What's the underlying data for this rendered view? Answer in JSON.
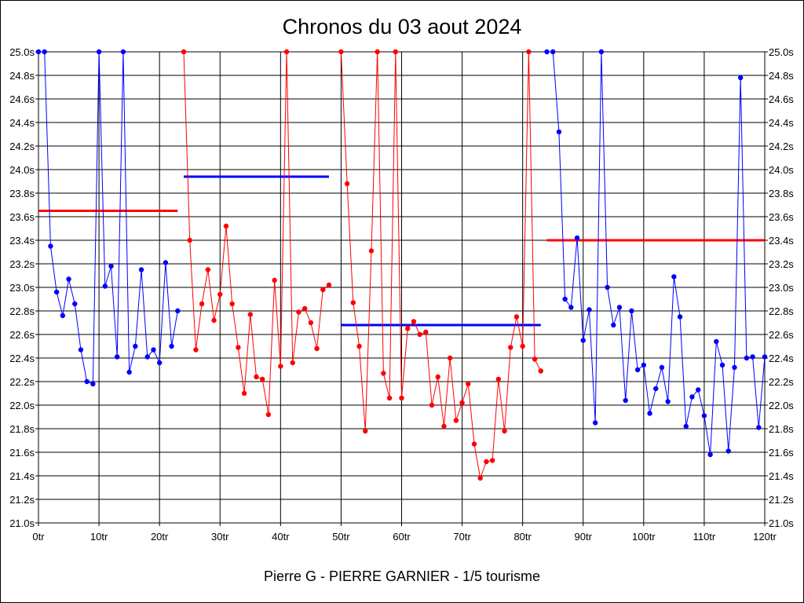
{
  "chart_data": {
    "type": "line",
    "title": "Chronos du 03 aout 2024",
    "subtitle": "Pierre G - PIERRE GARNIER - 1/5 tourisme",
    "xlabel": "",
    "ylabel": "",
    "xlim": [
      0,
      120
    ],
    "ylim": [
      21.0,
      25.0
    ],
    "x_ticks": [
      "0tr",
      "10tr",
      "20tr",
      "30tr",
      "40tr",
      "50tr",
      "60tr",
      "70tr",
      "80tr",
      "90tr",
      "100tr",
      "110tr",
      "120tr"
    ],
    "y_ticks": [
      "21.0s",
      "21.2s",
      "21.4s",
      "21.6s",
      "21.8s",
      "22.0s",
      "22.2s",
      "22.4s",
      "22.6s",
      "22.8s",
      "23.0s",
      "23.2s",
      "23.4s",
      "23.6s",
      "23.8s",
      "24.0s",
      "24.2s",
      "24.4s",
      "24.6s",
      "24.8s",
      "25.0s"
    ],
    "grid": true,
    "series": [
      {
        "color": "#0000ff",
        "x": [
          0,
          1,
          2,
          3,
          4,
          5,
          6,
          7,
          8,
          9,
          10,
          11,
          12,
          13,
          14,
          15,
          16,
          17,
          18,
          19,
          20,
          21,
          22,
          23
        ],
        "values": [
          25.0,
          25.0,
          23.35,
          22.96,
          22.76,
          23.07,
          22.86,
          22.47,
          22.2,
          22.18,
          25.0,
          23.01,
          23.18,
          22.41,
          25.0,
          22.28,
          22.5,
          23.15,
          22.41,
          22.47,
          22.36,
          23.21,
          22.5,
          22.8
        ],
        "mean": 23.65,
        "mean_color": "#ff0000"
      },
      {
        "color": "#ff0000",
        "x": [
          24,
          25,
          26,
          27,
          28,
          29,
          30,
          31,
          32,
          33,
          34,
          35,
          36,
          37,
          38,
          39,
          40,
          41,
          42,
          43,
          44,
          45,
          46,
          47,
          48
        ],
        "values": [
          25.0,
          23.4,
          22.47,
          22.86,
          23.15,
          22.72,
          22.94,
          23.52,
          22.86,
          22.49,
          22.1,
          22.77,
          22.24,
          22.22,
          21.92,
          23.06,
          22.33,
          25.0,
          22.36,
          22.79,
          22.82,
          22.7,
          22.48,
          22.98,
          23.02
        ],
        "mean": 23.94,
        "mean_color": "#0000ff"
      },
      {
        "color": "#ff0000",
        "x": [
          50,
          51,
          52,
          53,
          54,
          55,
          56,
          57,
          58,
          59,
          60,
          61,
          62,
          63,
          64,
          65,
          66,
          67,
          68,
          69,
          70,
          71,
          72,
          73,
          74,
          75,
          76,
          77,
          78,
          79,
          80,
          81,
          82,
          83
        ],
        "values": [
          25.0,
          23.88,
          22.87,
          22.5,
          21.78,
          23.31,
          25.0,
          22.27,
          22.06,
          25.0,
          22.06,
          22.65,
          22.71,
          22.6,
          22.62,
          22.0,
          22.24,
          21.82,
          22.4,
          21.87,
          22.02,
          22.18,
          21.67,
          21.38,
          21.52,
          21.53,
          22.22,
          21.78,
          22.49,
          22.75,
          22.5,
          25.0,
          22.39,
          22.29
        ],
        "mean": 22.68,
        "mean_color": "#0000ff"
      },
      {
        "color": "#0000ff",
        "x": [
          84,
          85,
          86,
          87,
          88,
          89,
          90,
          91,
          92,
          93,
          94,
          95,
          96,
          97,
          98,
          99,
          100,
          101,
          102,
          103,
          104,
          105,
          106,
          107,
          108,
          109,
          110,
          111,
          112,
          113,
          114,
          115,
          116,
          117,
          118,
          119,
          120
        ],
        "values": [
          25.0,
          25.0,
          24.32,
          22.9,
          22.83,
          23.42,
          22.55,
          22.81,
          21.85,
          25.0,
          23.0,
          22.68,
          22.83,
          22.04,
          22.8,
          22.3,
          22.34,
          21.93,
          22.14,
          22.32,
          22.03,
          23.09,
          22.75,
          21.82,
          22.07,
          22.13,
          21.91,
          21.58,
          22.54,
          22.34,
          21.61,
          22.32,
          24.78,
          22.4,
          22.41,
          21.81,
          22.41
        ],
        "mean": 23.4,
        "mean_color": "#ff0000"
      }
    ]
  }
}
